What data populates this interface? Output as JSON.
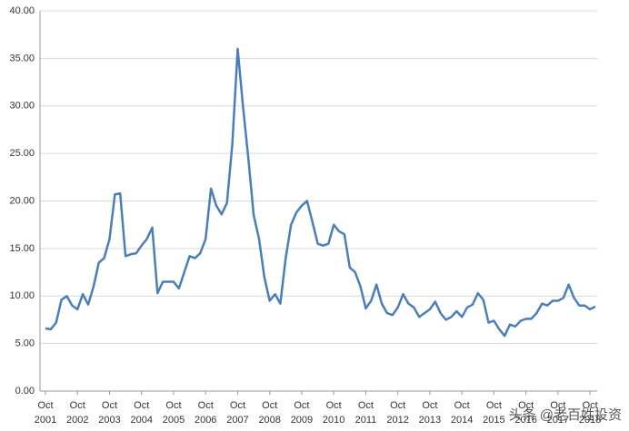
{
  "chart_data": {
    "type": "line",
    "categories": [
      "Oct 2001",
      null,
      null,
      null,
      null,
      null,
      "Oct 2002",
      null,
      null,
      null,
      null,
      null,
      "Oct 2003",
      null,
      null,
      null,
      null,
      null,
      "Oct 2004",
      null,
      null,
      null,
      null,
      null,
      "Oct 2005",
      null,
      null,
      null,
      null,
      null,
      "Oct 2006",
      null,
      null,
      null,
      null,
      null,
      "Oct 2007",
      null,
      null,
      null,
      null,
      null,
      "Oct 2008",
      null,
      null,
      null,
      null,
      null,
      "Oct 2009",
      null,
      null,
      null,
      null,
      null,
      "Oct 2010",
      null,
      null,
      null,
      null,
      null,
      "Oct 2011",
      null,
      null,
      null,
      null,
      null,
      "Oct 2012",
      null,
      null,
      null,
      null,
      null,
      "Oct 2013",
      null,
      null,
      null,
      null,
      null,
      "Oct 2014",
      null,
      null,
      null,
      null,
      null,
      "Oct 2015",
      null,
      null,
      null,
      null,
      null,
      "Oct 2016",
      null,
      null,
      null,
      null,
      null,
      "Oct 2017",
      null,
      null,
      null,
      null,
      null,
      "Oct 2018",
      null
    ],
    "series": [
      {
        "color": "#4a7ebb",
        "values": [
          6.6,
          6.5,
          7.2,
          9.6,
          10.0,
          9.0,
          8.6,
          10.2,
          9.1,
          11.0,
          13.5,
          14.0,
          16.0,
          20.7,
          20.8,
          14.2,
          14.4,
          14.5,
          15.3,
          16.0,
          17.2,
          10.3,
          11.5,
          11.5,
          11.5,
          10.8,
          12.5,
          14.2,
          14.0,
          14.5,
          16.0,
          21.3,
          19.5,
          18.6,
          19.8,
          26.0,
          36.0,
          30.0,
          24.5,
          18.5,
          16.0,
          12.0,
          9.5,
          10.2,
          9.2,
          14.0,
          17.5,
          18.8,
          19.5,
          20.0,
          17.8,
          15.5,
          15.3,
          15.5,
          17.5,
          16.8,
          16.5,
          13.0,
          12.5,
          11.0,
          8.7,
          9.5,
          11.2,
          9.2,
          8.2,
          8.0,
          8.8,
          10.2,
          9.2,
          8.8,
          7.8,
          8.2,
          8.6,
          9.4,
          8.2,
          7.5,
          7.8,
          8.4,
          7.8,
          8.8,
          9.1,
          10.3,
          9.6,
          7.2,
          7.4,
          6.5,
          5.8,
          7.0,
          6.8,
          7.4,
          7.6,
          7.6,
          8.2,
          9.2,
          9.0,
          9.5,
          9.5,
          9.8,
          11.2,
          9.8,
          9.0,
          9.0,
          8.6,
          8.9
        ]
      }
    ],
    "ylim": [
      0,
      40
    ],
    "yticks": [
      {
        "value": 0,
        "label": "0.00"
      },
      {
        "value": 5,
        "label": "5.00"
      },
      {
        "value": 10,
        "label": "10.00"
      },
      {
        "value": 15,
        "label": "15.00"
      },
      {
        "value": 20,
        "label": "20.00"
      },
      {
        "value": 25,
        "label": "25.00"
      },
      {
        "value": 30,
        "label": "30.00"
      },
      {
        "value": 35,
        "label": "35.00"
      },
      {
        "value": 40,
        "label": "40.00"
      }
    ],
    "grid": true,
    "watermark": "头条 @老百姓投资"
  }
}
